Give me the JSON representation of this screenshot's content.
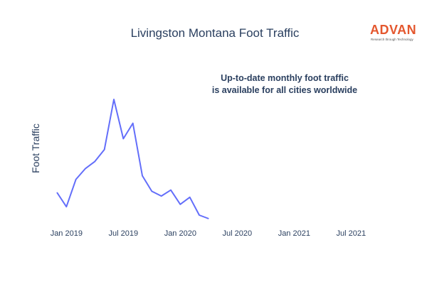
{
  "logo": {
    "wordmark": "ADVAN",
    "tagline": "Research through Technology",
    "color": "#e4572e"
  },
  "annotation": {
    "line1": "Up-to-date monthly foot traffic",
    "line2": "is available for all cities worldwide"
  },
  "chart_data": {
    "type": "line",
    "title": "Livingston Montana Foot Traffic",
    "xlabel": "",
    "ylabel": "Foot Traffic",
    "x_tick_labels": [
      "Jan 2019",
      "Jul 2019",
      "Jan 2020",
      "Jul 2020",
      "Jan 2021",
      "Jul 2021"
    ],
    "xlim": [
      "2018-12-01",
      "2021-09-01"
    ],
    "ylim": [
      0,
      100
    ],
    "grid": false,
    "line_color": "#636efa",
    "x": [
      "2018-12",
      "2019-01",
      "2019-02",
      "2019-03",
      "2019-04",
      "2019-05",
      "2019-06",
      "2019-07",
      "2019-08",
      "2019-09",
      "2019-10",
      "2019-11",
      "2019-12",
      "2020-01",
      "2020-02",
      "2020-03",
      "2020-04"
    ],
    "y": [
      22,
      10,
      33,
      42,
      48,
      58,
      100,
      67,
      80,
      36,
      23,
      19,
      24,
      12,
      18,
      3,
      0
    ]
  }
}
